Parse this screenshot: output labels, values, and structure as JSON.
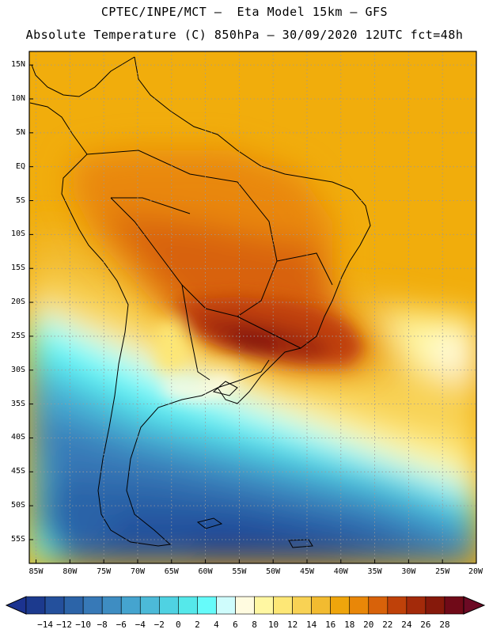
{
  "title": {
    "line1": "CPTEC/INPE/MCT –  Eta Model 15km – GFS",
    "line2": "Absolute Temperature (C) 850hPa – 30/09/2020 12UTC fct=48h"
  },
  "map": {
    "region": "South America",
    "lat_labels": [
      "15N",
      "10N",
      "5N",
      "EQ",
      "5S",
      "10S",
      "15S",
      "20S",
      "25S",
      "30S",
      "35S",
      "40S",
      "45S",
      "50S",
      "55S"
    ],
    "lat_values": [
      15,
      10,
      5,
      0,
      -5,
      -10,
      -15,
      -20,
      -25,
      -30,
      -35,
      -40,
      -45,
      -50,
      -55
    ],
    "lon_labels": [
      "85W",
      "80W",
      "75W",
      "70W",
      "65W",
      "60W",
      "55W",
      "50W",
      "45W",
      "40W",
      "35W",
      "30W",
      "25W",
      "20W"
    ],
    "lon_values": [
      -85,
      -80,
      -75,
      -70,
      -65,
      -60,
      -55,
      -50,
      -45,
      -40,
      -35,
      -30,
      -25,
      -20
    ],
    "lat_range": [
      -58.5,
      17
    ],
    "lon_range": [
      -86,
      -20
    ],
    "grid_color": "#9a9a9a"
  },
  "colorbar": {
    "labels": [
      "-14",
      "-12",
      "-10",
      "-8",
      "-6",
      "-4",
      "-2",
      "0",
      "2",
      "4",
      "6",
      "8",
      "10",
      "12",
      "14",
      "16",
      "18",
      "20",
      "22",
      "24",
      "26",
      "28"
    ],
    "colors": [
      "#1c3a8e",
      "#24509c",
      "#2c64a8",
      "#3779b7",
      "#3e8dc2",
      "#45a4cf",
      "#4cbad8",
      "#4fd2e2",
      "#55e8ea",
      "#66fbfa",
      "#cffcfc",
      "#fffbe0",
      "#fff7a2",
      "#fde776",
      "#f8d254",
      "#f2bb30",
      "#efa50c",
      "#e98708",
      "#d8620a",
      "#bf4109",
      "#a32a0a",
      "#86190b",
      "#700a18"
    ],
    "under_color": "#1c3390",
    "over_color": "#6c0a24"
  }
}
